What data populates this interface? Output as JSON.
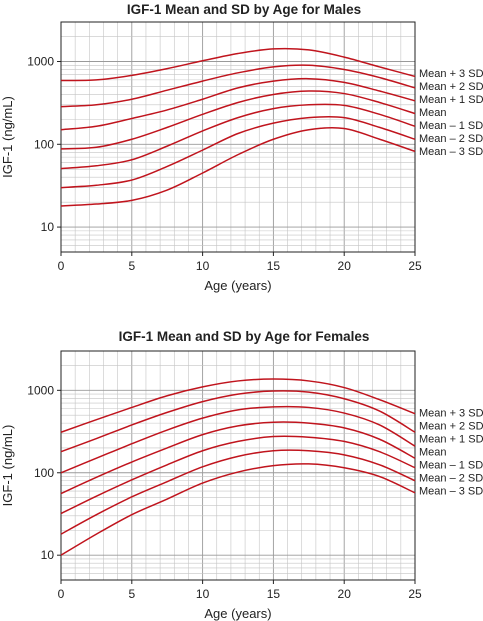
{
  "colors": {
    "curve": "#c0141d",
    "grid_major": "#9a9a9a",
    "grid_minor": "#c4c4c4",
    "text": "#222222"
  },
  "chart_data": [
    {
      "type": "line",
      "title": "IGF-1 Mean and SD by Age for Males",
      "xlabel": "Age (years)",
      "ylabel": "IGF-1 (ng/mL)",
      "xlim": [
        0,
        25
      ],
      "ylim": [
        5,
        3000
      ],
      "y_scale": "log",
      "x_ticks": [
        0,
        5,
        10,
        15,
        20,
        25
      ],
      "y_ticks": [
        10,
        100,
        1000
      ],
      "grid": true,
      "legend_position": "right",
      "x": [
        0,
        2.5,
        5,
        7.5,
        10,
        12.5,
        15,
        17.5,
        20,
        22.5,
        25
      ],
      "series": [
        {
          "name": "Mean + 3 SD",
          "values": [
            590,
            600,
            680,
            820,
            1020,
            1250,
            1420,
            1380,
            1130,
            860,
            660
          ]
        },
        {
          "name": "Mean + 2 SD",
          "values": [
            285,
            300,
            350,
            450,
            580,
            730,
            860,
            900,
            800,
            640,
            480
          ]
        },
        {
          "name": "Mean + 1 SD",
          "values": [
            150,
            165,
            205,
            260,
            350,
            480,
            580,
            620,
            560,
            440,
            335
          ]
        },
        {
          "name": "Mean",
          "values": [
            88,
            92,
            115,
            160,
            230,
            320,
            400,
            440,
            410,
            320,
            235
          ]
        },
        {
          "name": "Mean – 1 SD",
          "values": [
            51,
            55,
            65,
            95,
            145,
            210,
            270,
            300,
            295,
            230,
            165
          ]
        },
        {
          "name": "Mean – 2 SD",
          "values": [
            30,
            32,
            37,
            54,
            85,
            135,
            180,
            210,
            210,
            160,
            115
          ]
        },
        {
          "name": "Mean – 3 SD",
          "values": [
            18,
            19,
            21,
            28,
            45,
            75,
            115,
            150,
            155,
            115,
            82
          ]
        }
      ]
    },
    {
      "type": "line",
      "title": "IGF-1 Mean and SD by Age for Females",
      "xlabel": "Age (years)",
      "ylabel": "IGF-1 (ng/mL)",
      "xlim": [
        0,
        25
      ],
      "ylim": [
        5,
        3000
      ],
      "y_scale": "log",
      "x_ticks": [
        0,
        5,
        10,
        15,
        20,
        25
      ],
      "y_ticks": [
        10,
        100,
        1000
      ],
      "grid": true,
      "legend_position": "right",
      "x": [
        0,
        2.5,
        5,
        7.5,
        10,
        12.5,
        15,
        17.5,
        20,
        22.5,
        25
      ],
      "series": [
        {
          "name": "Mean + 3 SD",
          "values": [
            310,
            440,
            620,
            860,
            1100,
            1300,
            1370,
            1300,
            1080,
            770,
            520
          ]
        },
        {
          "name": "Mean + 2 SD",
          "values": [
            180,
            260,
            380,
            540,
            730,
            900,
            980,
            950,
            790,
            560,
            310
          ]
        },
        {
          "name": "Mean + 1 SD",
          "values": [
            100,
            150,
            225,
            330,
            460,
            580,
            630,
            620,
            530,
            380,
            210
          ]
        },
        {
          "name": "Mean",
          "values": [
            56,
            88,
            135,
            200,
            290,
            370,
            410,
            400,
            350,
            255,
            150
          ]
        },
        {
          "name": "Mean – 1 SD",
          "values": [
            32,
            52,
            82,
            125,
            185,
            240,
            275,
            270,
            240,
            180,
            115
          ]
        },
        {
          "name": "Mean – 2 SD",
          "values": [
            18,
            31,
            51,
            78,
            118,
            158,
            185,
            185,
            165,
            125,
            80
          ]
        },
        {
          "name": "Mean – 3 SD",
          "values": [
            10,
            18,
            31,
            48,
            75,
            102,
            122,
            128,
            115,
            90,
            57
          ]
        }
      ]
    }
  ]
}
